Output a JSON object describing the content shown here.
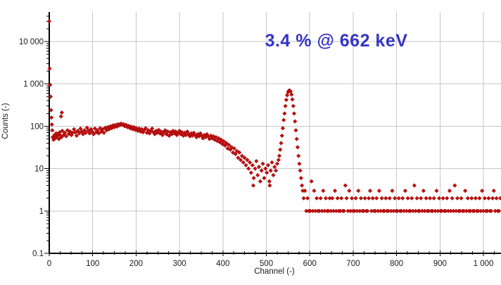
{
  "chart_data": {
    "type": "scatter",
    "title": "",
    "xlabel": "Channel (-)",
    "ylabel": "Counts (-)",
    "annotation": "3.4 % @ 662 keV",
    "marker_shape": "diamond",
    "colors": {
      "marker": "#c01010",
      "marker_edge": "#8f0000",
      "annotation": "#3535c5",
      "grid": "#c6c6c6",
      "axis": "#000000",
      "text": "#1a1a1a",
      "background": "#ffffff"
    },
    "x_axis": {
      "min": 0,
      "max": 1040,
      "major_tick_interval": 100,
      "minor_tick_interval": 25
    },
    "y_axis": {
      "scale": "log",
      "min": 0.1,
      "max": 50000
    },
    "x_tick_values": [
      0,
      100,
      200,
      300,
      400,
      500,
      600,
      700,
      800,
      900,
      1000
    ],
    "x_tick_labels": [
      "0",
      "100",
      "200",
      "300",
      "400",
      "500",
      "600",
      "700",
      "800",
      "900",
      "1 000"
    ],
    "y_tick_values": [
      0.1,
      1,
      10,
      100,
      1000,
      10000
    ],
    "y_tick_labels": [
      "0.1",
      "1",
      "10",
      "100",
      "1 000",
      "10 000"
    ],
    "grid": {
      "x_on": true,
      "y_on": true
    },
    "legend": null,
    "points": [
      [
        0,
        30000
      ],
      [
        1,
        2300
      ],
      [
        2,
        950
      ],
      [
        3,
        500
      ],
      [
        4,
        240
      ],
      [
        5,
        160
      ],
      [
        6,
        110
      ],
      [
        7,
        80
      ],
      [
        8,
        55
      ],
      [
        10,
        48
      ],
      [
        12,
        62
      ],
      [
        14,
        52
      ],
      [
        16,
        68
      ],
      [
        18,
        58
      ],
      [
        20,
        65
      ],
      [
        22,
        50
      ],
      [
        24,
        72
      ],
      [
        26,
        60
      ],
      [
        27,
        170
      ],
      [
        29,
        210
      ],
      [
        28,
        55
      ],
      [
        30,
        78
      ],
      [
        33,
        62
      ],
      [
        36,
        70
      ],
      [
        39,
        58
      ],
      [
        42,
        80
      ],
      [
        45,
        66
      ],
      [
        48,
        75
      ],
      [
        51,
        62
      ],
      [
        54,
        70
      ],
      [
        57,
        85
      ],
      [
        60,
        72
      ],
      [
        63,
        60
      ],
      [
        66,
        78
      ],
      [
        69,
        68
      ],
      [
        72,
        88
      ],
      [
        75,
        75
      ],
      [
        78,
        65
      ],
      [
        81,
        80
      ],
      [
        84,
        70
      ],
      [
        87,
        92
      ],
      [
        90,
        78
      ],
      [
        93,
        68
      ],
      [
        96,
        85
      ],
      [
        99,
        75
      ],
      [
        102,
        65
      ],
      [
        105,
        88
      ],
      [
        108,
        72
      ],
      [
        111,
        80
      ],
      [
        114,
        68
      ],
      [
        117,
        90
      ],
      [
        120,
        75
      ],
      [
        123,
        85
      ],
      [
        126,
        70
      ],
      [
        129,
        92
      ],
      [
        132,
        80
      ],
      [
        135,
        95
      ],
      [
        138,
        85
      ],
      [
        141,
        100
      ],
      [
        144,
        90
      ],
      [
        147,
        105
      ],
      [
        150,
        95
      ],
      [
        153,
        108
      ],
      [
        156,
        98
      ],
      [
        159,
        112
      ],
      [
        162,
        105
      ],
      [
        165,
        115
      ],
      [
        168,
        108
      ],
      [
        171,
        112
      ],
      [
        174,
        100
      ],
      [
        177,
        108
      ],
      [
        180,
        95
      ],
      [
        183,
        102
      ],
      [
        186,
        90
      ],
      [
        189,
        98
      ],
      [
        192,
        85
      ],
      [
        195,
        95
      ],
      [
        198,
        82
      ],
      [
        201,
        90
      ],
      [
        204,
        78
      ],
      [
        207,
        88
      ],
      [
        210,
        75
      ],
      [
        213,
        85
      ],
      [
        216,
        72
      ],
      [
        219,
        82
      ],
      [
        222,
        90
      ],
      [
        225,
        70
      ],
      [
        228,
        80
      ],
      [
        231,
        68
      ],
      [
        234,
        78
      ],
      [
        237,
        88
      ],
      [
        240,
        72
      ],
      [
        243,
        65
      ],
      [
        246,
        78
      ],
      [
        249,
        70
      ],
      [
        252,
        82
      ],
      [
        255,
        68
      ],
      [
        258,
        75
      ],
      [
        261,
        62
      ],
      [
        264,
        72
      ],
      [
        267,
        80
      ],
      [
        270,
        65
      ],
      [
        273,
        75
      ],
      [
        276,
        60
      ],
      [
        279,
        72
      ],
      [
        282,
        65
      ],
      [
        285,
        78
      ],
      [
        288,
        68
      ],
      [
        291,
        75
      ],
      [
        294,
        62
      ],
      [
        297,
        70
      ],
      [
        300,
        78
      ],
      [
        303,
        65
      ],
      [
        306,
        72
      ],
      [
        309,
        60
      ],
      [
        312,
        70
      ],
      [
        315,
        62
      ],
      [
        318,
        75
      ],
      [
        321,
        65
      ],
      [
        324,
        58
      ],
      [
        327,
        68
      ],
      [
        330,
        60
      ],
      [
        333,
        70
      ],
      [
        336,
        62
      ],
      [
        339,
        55
      ],
      [
        342,
        65
      ],
      [
        345,
        58
      ],
      [
        348,
        68
      ],
      [
        351,
        60
      ],
      [
        354,
        52
      ],
      [
        357,
        62
      ],
      [
        360,
        55
      ],
      [
        363,
        65
      ],
      [
        366,
        58
      ],
      [
        369,
        50
      ],
      [
        372,
        60
      ],
      [
        375,
        52
      ],
      [
        378,
        58
      ],
      [
        381,
        48
      ],
      [
        384,
        55
      ],
      [
        387,
        45
      ],
      [
        390,
        52
      ],
      [
        393,
        42
      ],
      [
        396,
        48
      ],
      [
        399,
        38
      ],
      [
        402,
        44
      ],
      [
        405,
        35
      ],
      [
        408,
        40
      ],
      [
        411,
        30
      ],
      [
        414,
        36
      ],
      [
        417,
        28
      ],
      [
        420,
        32
      ],
      [
        423,
        24
      ],
      [
        426,
        30
      ],
      [
        429,
        22
      ],
      [
        432,
        26
      ],
      [
        435,
        18
      ],
      [
        438,
        24
      ],
      [
        441,
        16
      ],
      [
        444,
        20
      ],
      [
        447,
        14
      ],
      [
        450,
        18
      ],
      [
        453,
        12
      ],
      [
        456,
        16
      ],
      [
        459,
        10
      ],
      [
        462,
        14
      ],
      [
        465,
        8
      ],
      [
        468,
        12
      ],
      [
        471,
        6
      ],
      [
        474,
        10
      ],
      [
        477,
        15
      ],
      [
        480,
        7
      ],
      [
        483,
        11
      ],
      [
        486,
        5
      ],
      [
        489,
        9
      ],
      [
        492,
        13
      ],
      [
        495,
        6
      ],
      [
        498,
        10
      ],
      [
        501,
        8
      ],
      [
        504,
        12
      ],
      [
        507,
        5
      ],
      [
        510,
        9
      ],
      [
        513,
        14
      ],
      [
        516,
        7
      ],
      [
        519,
        11
      ],
      [
        522,
        9
      ],
      [
        525,
        13
      ],
      [
        528,
        16
      ],
      [
        470,
        4
      ],
      [
        508,
        4
      ],
      [
        530,
        20
      ],
      [
        532,
        28
      ],
      [
        534,
        40
      ],
      [
        536,
        60
      ],
      [
        538,
        90
      ],
      [
        540,
        140
      ],
      [
        542,
        200
      ],
      [
        544,
        300
      ],
      [
        546,
        420
      ],
      [
        548,
        540
      ],
      [
        550,
        640
      ],
      [
        552,
        690
      ],
      [
        554,
        700
      ],
      [
        556,
        660
      ],
      [
        558,
        560
      ],
      [
        560,
        430
      ],
      [
        562,
        300
      ],
      [
        564,
        200
      ],
      [
        566,
        130
      ],
      [
        568,
        80
      ],
      [
        570,
        50
      ],
      [
        572,
        32
      ],
      [
        574,
        20
      ],
      [
        576,
        13
      ],
      [
        578,
        9
      ],
      [
        580,
        6
      ],
      [
        582,
        4
      ],
      [
        584,
        3
      ],
      [
        586,
        2
      ],
      [
        589,
        3
      ],
      [
        592,
        1
      ],
      [
        595,
        2
      ],
      [
        598,
        1
      ],
      [
        601,
        1
      ],
      [
        604,
        5
      ],
      [
        607,
        1
      ],
      [
        610,
        3
      ],
      [
        613,
        1
      ],
      [
        616,
        2
      ],
      [
        619,
        1
      ],
      [
        622,
        1
      ],
      [
        625,
        2
      ],
      [
        628,
        1
      ],
      [
        631,
        3
      ],
      [
        634,
        1
      ],
      [
        637,
        2
      ],
      [
        640,
        1
      ],
      [
        643,
        1
      ],
      [
        646,
        2
      ],
      [
        649,
        1
      ],
      [
        652,
        2
      ],
      [
        655,
        1
      ],
      [
        658,
        3
      ],
      [
        661,
        1
      ],
      [
        664,
        2
      ],
      [
        667,
        1
      ],
      [
        670,
        1
      ],
      [
        673,
        2
      ],
      [
        676,
        1
      ],
      [
        679,
        1
      ],
      [
        682,
        4
      ],
      [
        685,
        2
      ],
      [
        688,
        1
      ],
      [
        691,
        3
      ],
      [
        694,
        1
      ],
      [
        697,
        2
      ],
      [
        700,
        1
      ],
      [
        703,
        1
      ],
      [
        706,
        2
      ],
      [
        709,
        1
      ],
      [
        712,
        3
      ],
      [
        715,
        1
      ],
      [
        718,
        2
      ],
      [
        721,
        1
      ],
      [
        724,
        1
      ],
      [
        727,
        2
      ],
      [
        730,
        1
      ],
      [
        733,
        1
      ],
      [
        736,
        2
      ],
      [
        739,
        3
      ],
      [
        742,
        1
      ],
      [
        745,
        2
      ],
      [
        748,
        1
      ],
      [
        751,
        1
      ],
      [
        754,
        2
      ],
      [
        757,
        1
      ],
      [
        760,
        3
      ],
      [
        763,
        1
      ],
      [
        766,
        2
      ],
      [
        769,
        1
      ],
      [
        772,
        1
      ],
      [
        775,
        2
      ],
      [
        778,
        1
      ],
      [
        781,
        1
      ],
      [
        784,
        2
      ],
      [
        787,
        1
      ],
      [
        790,
        3
      ],
      [
        793,
        1
      ],
      [
        796,
        2
      ],
      [
        799,
        1
      ],
      [
        802,
        1
      ],
      [
        805,
        2
      ],
      [
        808,
        1
      ],
      [
        811,
        1
      ],
      [
        814,
        2
      ],
      [
        817,
        1
      ],
      [
        820,
        3
      ],
      [
        823,
        1
      ],
      [
        826,
        2
      ],
      [
        829,
        1
      ],
      [
        832,
        1
      ],
      [
        835,
        2
      ],
      [
        838,
        1
      ],
      [
        841,
        4
      ],
      [
        844,
        1
      ],
      [
        847,
        2
      ],
      [
        850,
        1
      ],
      [
        853,
        1
      ],
      [
        856,
        2
      ],
      [
        859,
        1
      ],
      [
        862,
        3
      ],
      [
        865,
        1
      ],
      [
        868,
        2
      ],
      [
        871,
        1
      ],
      [
        874,
        1
      ],
      [
        877,
        2
      ],
      [
        880,
        1
      ],
      [
        883,
        1
      ],
      [
        886,
        2
      ],
      [
        889,
        1
      ],
      [
        892,
        3
      ],
      [
        895,
        1
      ],
      [
        898,
        2
      ],
      [
        901,
        1
      ],
      [
        904,
        1
      ],
      [
        907,
        2
      ],
      [
        910,
        1
      ],
      [
        913,
        1
      ],
      [
        916,
        2
      ],
      [
        919,
        1
      ],
      [
        922,
        3
      ],
      [
        925,
        1
      ],
      [
        928,
        2
      ],
      [
        931,
        1
      ],
      [
        934,
        4
      ],
      [
        937,
        1
      ],
      [
        940,
        2
      ],
      [
        943,
        1
      ],
      [
        946,
        1
      ],
      [
        949,
        2
      ],
      [
        952,
        1
      ],
      [
        955,
        1
      ],
      [
        958,
        3
      ],
      [
        961,
        1
      ],
      [
        964,
        2
      ],
      [
        967,
        1
      ],
      [
        970,
        1
      ],
      [
        973,
        2
      ],
      [
        976,
        1
      ],
      [
        979,
        1
      ],
      [
        982,
        2
      ],
      [
        985,
        1
      ],
      [
        988,
        1
      ],
      [
        991,
        2
      ],
      [
        994,
        1
      ],
      [
        997,
        3
      ],
      [
        1000,
        1
      ],
      [
        1003,
        2
      ],
      [
        1006,
        1
      ],
      [
        1009,
        1
      ],
      [
        1012,
        2
      ],
      [
        1015,
        1
      ],
      [
        1018,
        1
      ],
      [
        1021,
        2
      ],
      [
        1024,
        3
      ],
      [
        1027,
        1
      ],
      [
        1030,
        2
      ],
      [
        1033,
        1
      ],
      [
        1036,
        1
      ],
      [
        1039,
        2
      ]
    ]
  }
}
